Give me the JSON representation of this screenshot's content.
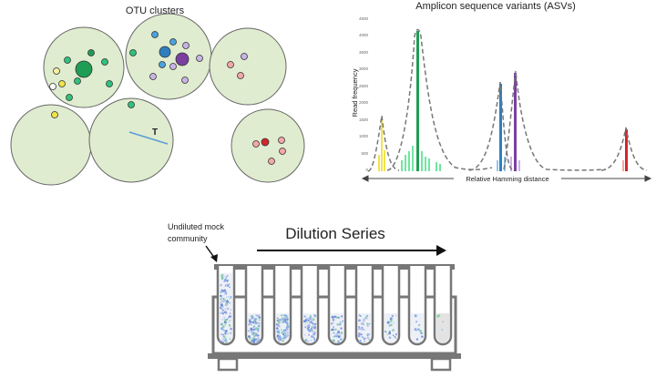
{
  "otu": {
    "title": "OTU clusters",
    "threshold_label": "T"
  },
  "asv": {
    "title": "Amplicon sequence variants (ASVs)",
    "ylabel": "Read frequency",
    "xlabel": "Relative Hamming distance",
    "yticks": [
      "4500",
      "4000",
      "3500",
      "3000",
      "2500",
      "2000",
      "1500",
      "1000",
      "500",
      "0"
    ]
  },
  "dilution": {
    "title": "Dilution Series",
    "undiluted_label_line1": "Undiluted mock",
    "undiluted_label_line2": "community"
  },
  "colors": {
    "cluster_fill": "#dfeccf",
    "green": "#1f9d55",
    "light_green": "#6ee7a0",
    "yellow": "#f1e34a",
    "blue": "#2f7fbf",
    "purple": "#7b3fa0",
    "lavender": "#c9b3e6",
    "red": "#d4262e",
    "pink": "#f4a7a7",
    "rack_gray": "#777777"
  }
}
